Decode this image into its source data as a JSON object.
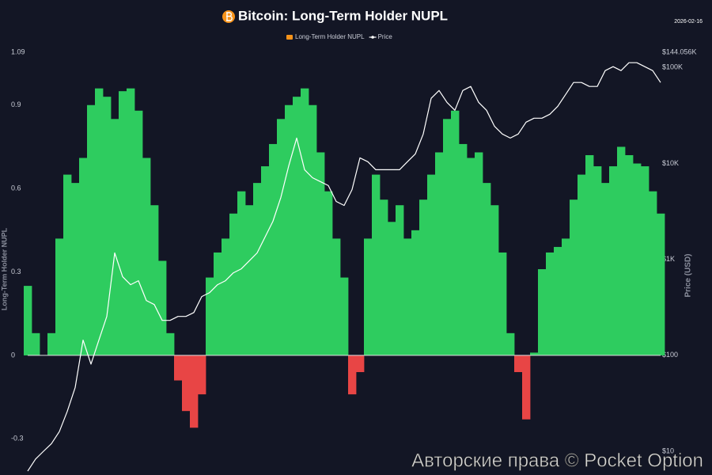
{
  "chart_data": {
    "type": "area_line",
    "title": "Bitcoin: Long-Term Holder NUPL",
    "date": "2026-02-16",
    "ylabel": "Long-Term Holder NUPL",
    "y2label": "Price (USD)",
    "watermark": "Авторские права © Pocket Option",
    "categories": [
      null,
      null,
      null,
      null,
      null,
      null,
      null,
      null,
      null,
      null,
      null,
      null,
      null,
      null,
      null,
      null,
      null,
      null,
      null,
      null,
      null,
      null,
      null,
      null,
      null,
      null,
      null,
      null,
      null,
      null,
      null,
      null,
      null,
      null,
      null,
      null,
      null,
      null,
      null,
      null,
      null,
      null,
      null,
      null,
      null,
      null,
      null,
      null,
      null,
      null,
      null,
      null,
      null,
      null,
      null,
      null,
      null,
      null,
      null,
      null,
      null,
      null,
      null,
      null,
      null,
      null,
      null,
      null,
      null,
      null,
      null,
      null,
      null,
      null,
      null,
      null,
      null,
      null,
      null,
      null,
      null
    ],
    "ylim": [
      -0.43,
      1.09
    ],
    "yticks": [
      1.09,
      0.9,
      0.6,
      0.3,
      0,
      -0.3
    ],
    "y2lim": [
      5.65,
      144056
    ],
    "y2_log": true,
    "y2ticks": [
      {
        "value": 144056,
        "label": "$144.056K"
      },
      {
        "value": 100000,
        "label": "$100K"
      },
      {
        "value": 10000,
        "label": "$10K"
      },
      {
        "value": 1000,
        "label": "$1K"
      },
      {
        "value": 100,
        "label": "$100"
      },
      {
        "value": 10,
        "label": "$10"
      }
    ],
    "series": [
      {
        "name": "Long-Term Holder NUPL",
        "color": "#f7931a",
        "positive_color": "#2ecc5f",
        "negative_color": "#e84545",
        "values": [
          0.25,
          0.08,
          0,
          0.08,
          0.42,
          0.65,
          0.62,
          0.71,
          0.9,
          0.96,
          0.93,
          0.85,
          0.95,
          0.96,
          0.88,
          0.71,
          0.54,
          0.34,
          0.08,
          -0.09,
          -0.2,
          -0.26,
          -0.14,
          0.28,
          0.37,
          0.42,
          0.51,
          0.59,
          0.54,
          0.62,
          0.68,
          0.76,
          0.85,
          0.9,
          0.93,
          0.96,
          0.9,
          0.73,
          0.59,
          0.42,
          0.28,
          -0.14,
          -0.06,
          0.42,
          0.65,
          0.56,
          0.48,
          0.54,
          0.42,
          0.45,
          0.56,
          0.65,
          0.73,
          0.85,
          0.88,
          0.76,
          0.71,
          0.73,
          0.62,
          0.54,
          0.37,
          0.08,
          -0.06,
          -0.23,
          0.01,
          0.31,
          0.37,
          0.39,
          0.42,
          0.56,
          0.65,
          0.72,
          0.68,
          0.62,
          0.68,
          0.75,
          0.72,
          0.69,
          0.68,
          0.59,
          0.51
        ]
      },
      {
        "name": "Price",
        "color": "#ffffff",
        "axis": "y2",
        "values": [
          6.2,
          8.3,
          10,
          12,
          16,
          26,
          46,
          144,
          81,
          144,
          254,
          1165,
          658,
          544,
          598,
          372,
          338,
          231,
          231,
          254,
          254,
          279,
          409,
          450,
          544,
          598,
          724,
          796,
          962,
          1165,
          1704,
          2494,
          4414,
          9441,
          18365,
          8590,
          7096,
          6454,
          5870,
          4010,
          3648,
          5335,
          11430,
          10400,
          8590,
          8590,
          8590,
          8590,
          10400,
          12560,
          20230,
          47640,
          57540,
          43250,
          35810,
          57540,
          63390,
          43250,
          35810,
          24430,
          20230,
          18365,
          20230,
          26920,
          29580,
          29580,
          32510,
          39360,
          52360,
          69660,
          69660,
          63390,
          63390,
          92680,
          101900,
          92680,
          112200,
          112200,
          101900,
          92680,
          69660
        ]
      }
    ]
  }
}
